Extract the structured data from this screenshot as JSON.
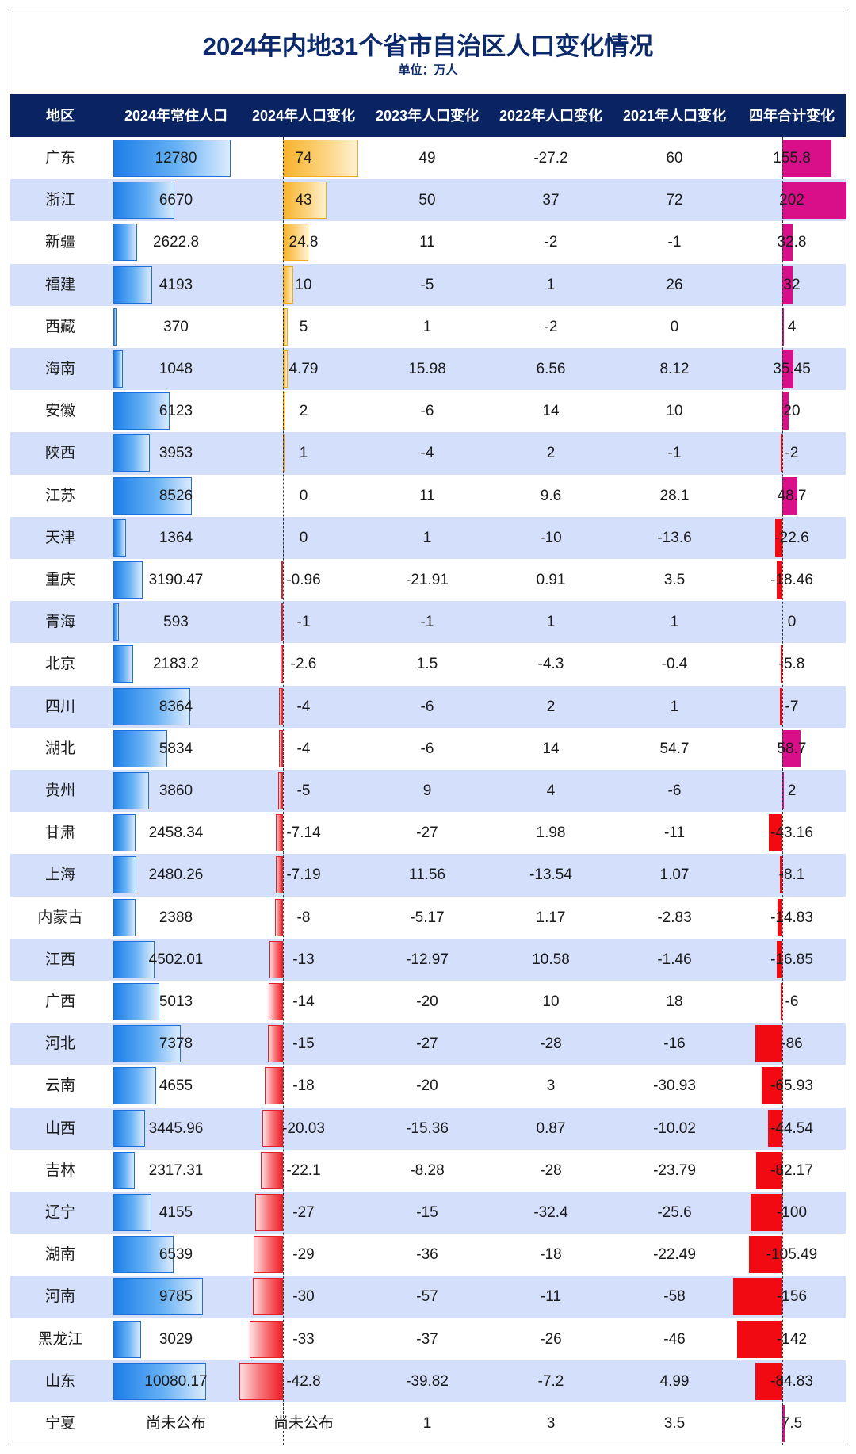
{
  "title": "2024年内地31个省市自治区人口变化情况",
  "subtitle": "单位：万人",
  "columns": [
    "地区",
    "2024年常住人口",
    "2024年人口变化",
    "2023年人口变化",
    "2022年人口变化",
    "2021年人口变化",
    "四年合计变化"
  ],
  "colors": {
    "header_bg": "#0a2463",
    "title": "#0c2a6b",
    "row_alt": "#d4e0fb",
    "population_bar": "#1c7ee8",
    "change_2024_positive": "#f7b32b",
    "change_2024_negative": "#ef1f26",
    "total_positive": "#d90f89",
    "total_negative": "#f20a12"
  },
  "chart_data": {
    "type": "table",
    "unit": "万人",
    "rows": [
      {
        "region": "广东",
        "pop2024": "12780",
        "c2024": "74",
        "c2023": "49",
        "c2022": "-27.2",
        "c2021": "60",
        "total": "155.8"
      },
      {
        "region": "浙江",
        "pop2024": "6670",
        "c2024": "43",
        "c2023": "50",
        "c2022": "37",
        "c2021": "72",
        "total": "202"
      },
      {
        "region": "新疆",
        "pop2024": "2622.8",
        "c2024": "24.8",
        "c2023": "11",
        "c2022": "-2",
        "c2021": "-1",
        "total": "32.8"
      },
      {
        "region": "福建",
        "pop2024": "4193",
        "c2024": "10",
        "c2023": "-5",
        "c2022": "1",
        "c2021": "26",
        "total": "32"
      },
      {
        "region": "西藏",
        "pop2024": "370",
        "c2024": "5",
        "c2023": "1",
        "c2022": "-2",
        "c2021": "0",
        "total": "4"
      },
      {
        "region": "海南",
        "pop2024": "1048",
        "c2024": "4.79",
        "c2023": "15.98",
        "c2022": "6.56",
        "c2021": "8.12",
        "total": "35.45"
      },
      {
        "region": "安徽",
        "pop2024": "6123",
        "c2024": "2",
        "c2023": "-6",
        "c2022": "14",
        "c2021": "10",
        "total": "20"
      },
      {
        "region": "陕西",
        "pop2024": "3953",
        "c2024": "1",
        "c2023": "-4",
        "c2022": "2",
        "c2021": "-1",
        "total": "-2"
      },
      {
        "region": "江苏",
        "pop2024": "8526",
        "c2024": "0",
        "c2023": "11",
        "c2022": "9.6",
        "c2021": "28.1",
        "total": "48.7"
      },
      {
        "region": "天津",
        "pop2024": "1364",
        "c2024": "0",
        "c2023": "1",
        "c2022": "-10",
        "c2021": "-13.6",
        "total": "-22.6"
      },
      {
        "region": "重庆",
        "pop2024": "3190.47",
        "c2024": "-0.96",
        "c2023": "-21.91",
        "c2022": "0.91",
        "c2021": "3.5",
        "total": "-18.46"
      },
      {
        "region": "青海",
        "pop2024": "593",
        "c2024": "-1",
        "c2023": "-1",
        "c2022": "1",
        "c2021": "1",
        "total": "0"
      },
      {
        "region": "北京",
        "pop2024": "2183.2",
        "c2024": "-2.6",
        "c2023": "1.5",
        "c2022": "-4.3",
        "c2021": "-0.4",
        "total": "-5.8"
      },
      {
        "region": "四川",
        "pop2024": "8364",
        "c2024": "-4",
        "c2023": "-6",
        "c2022": "2",
        "c2021": "1",
        "total": "-7"
      },
      {
        "region": "湖北",
        "pop2024": "5834",
        "c2024": "-4",
        "c2023": "-6",
        "c2022": "14",
        "c2021": "54.7",
        "total": "58.7"
      },
      {
        "region": "贵州",
        "pop2024": "3860",
        "c2024": "-5",
        "c2023": "9",
        "c2022": "4",
        "c2021": "-6",
        "total": "2"
      },
      {
        "region": "甘肃",
        "pop2024": "2458.34",
        "c2024": "-7.14",
        "c2023": "-27",
        "c2022": "1.98",
        "c2021": "-11",
        "total": "-43.16"
      },
      {
        "region": "上海",
        "pop2024": "2480.26",
        "c2024": "-7.19",
        "c2023": "11.56",
        "c2022": "-13.54",
        "c2021": "1.07",
        "total": "-8.1"
      },
      {
        "region": "内蒙古",
        "pop2024": "2388",
        "c2024": "-8",
        "c2023": "-5.17",
        "c2022": "1.17",
        "c2021": "-2.83",
        "total": "-14.83"
      },
      {
        "region": "江西",
        "pop2024": "4502.01",
        "c2024": "-13",
        "c2023": "-12.97",
        "c2022": "10.58",
        "c2021": "-1.46",
        "total": "-16.85"
      },
      {
        "region": "广西",
        "pop2024": "5013",
        "c2024": "-14",
        "c2023": "-20",
        "c2022": "10",
        "c2021": "18",
        "total": "-6"
      },
      {
        "region": "河北",
        "pop2024": "7378",
        "c2024": "-15",
        "c2023": "-27",
        "c2022": "-28",
        "c2021": "-16",
        "total": "-86"
      },
      {
        "region": "云南",
        "pop2024": "4655",
        "c2024": "-18",
        "c2023": "-20",
        "c2022": "3",
        "c2021": "-30.93",
        "total": "-65.93"
      },
      {
        "region": "山西",
        "pop2024": "3445.96",
        "c2024": "-20.03",
        "c2023": "-15.36",
        "c2022": "0.87",
        "c2021": "-10.02",
        "total": "-44.54"
      },
      {
        "region": "吉林",
        "pop2024": "2317.31",
        "c2024": "-22.1",
        "c2023": "-8.28",
        "c2022": "-28",
        "c2021": "-23.79",
        "total": "-82.17"
      },
      {
        "region": "辽宁",
        "pop2024": "4155",
        "c2024": "-27",
        "c2023": "-15",
        "c2022": "-32.4",
        "c2021": "-25.6",
        "total": "-100"
      },
      {
        "region": "湖南",
        "pop2024": "6539",
        "c2024": "-29",
        "c2023": "-36",
        "c2022": "-18",
        "c2021": "-22.49",
        "total": "-105.49"
      },
      {
        "region": "河南",
        "pop2024": "9785",
        "c2024": "-30",
        "c2023": "-57",
        "c2022": "-11",
        "c2021": "-58",
        "total": "-156"
      },
      {
        "region": "黑龙江",
        "pop2024": "3029",
        "c2024": "-33",
        "c2023": "-37",
        "c2022": "-26",
        "c2021": "-46",
        "total": "-142"
      },
      {
        "region": "山东",
        "pop2024": "10080.17",
        "c2024": "-42.8",
        "c2023": "-39.82",
        "c2022": "-7.2",
        "c2021": "4.99",
        "total": "-84.83"
      },
      {
        "region": "宁夏",
        "pop2024": "尚未公布",
        "c2024": "尚未公布",
        "c2023": "1",
        "c2022": "3",
        "c2021": "3.5",
        "total": "7.5"
      }
    ]
  }
}
